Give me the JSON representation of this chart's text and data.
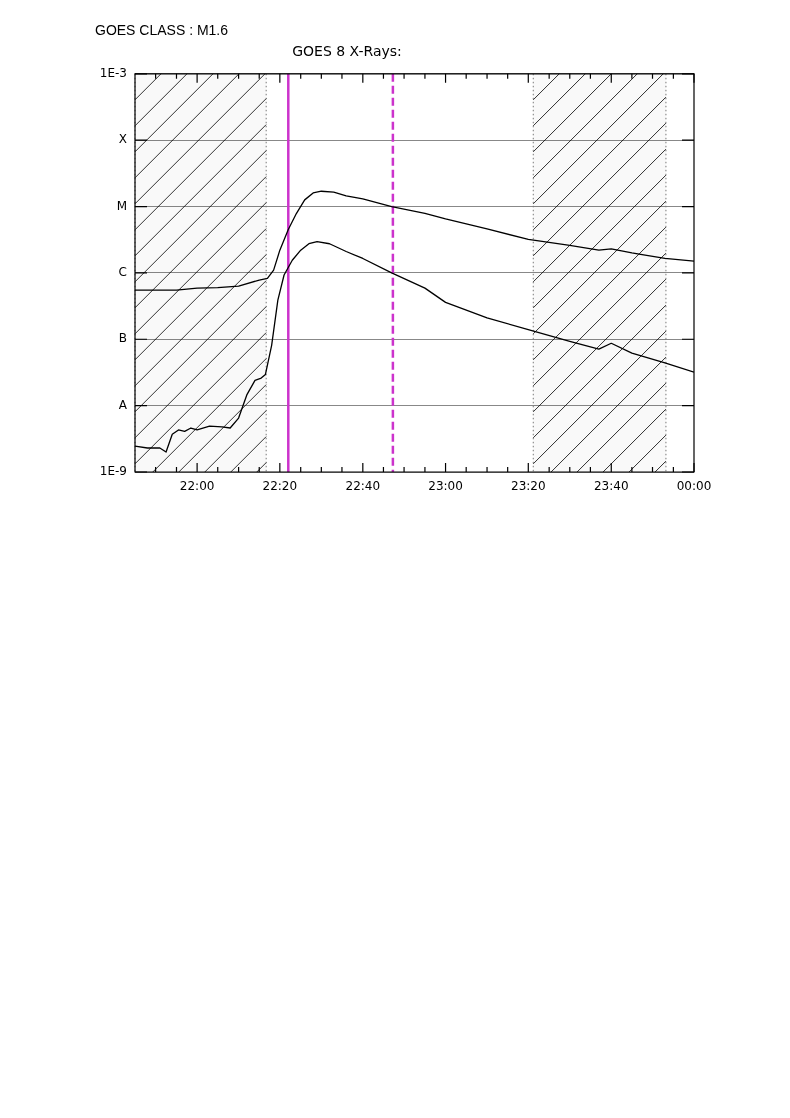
{
  "chart_data": {
    "type": "line",
    "title": "GOES 8 X-Rays:",
    "annotations": [
      "GOES CLASS : M1.6"
    ],
    "log": "y",
    "grid": "y",
    "xlim": [
      21.75,
      24
    ],
    "xticks": [
      {
        "value": 21.833,
        "label": null
      },
      {
        "value": 21.917,
        "label": null
      },
      {
        "value": 22,
        "label": "22:00"
      },
      {
        "value": 22.083,
        "label": null
      },
      {
        "value": 22.167,
        "label": null
      },
      {
        "value": 22.25,
        "label": null
      },
      {
        "value": 22.333,
        "label": "22:20"
      },
      {
        "value": 22.417,
        "label": null
      },
      {
        "value": 22.5,
        "label": null
      },
      {
        "value": 22.583,
        "label": null
      },
      {
        "value": 22.667,
        "label": "22:40"
      },
      {
        "value": 22.75,
        "label": null
      },
      {
        "value": 22.833,
        "label": null
      },
      {
        "value": 22.917,
        "label": null
      },
      {
        "value": 23,
        "label": "23:00"
      },
      {
        "value": 23.083,
        "label": null
      },
      {
        "value": 23.167,
        "label": null
      },
      {
        "value": 23.25,
        "label": null
      },
      {
        "value": 23.333,
        "label": "23:20"
      },
      {
        "value": 23.417,
        "label": null
      },
      {
        "value": 23.5,
        "label": null
      },
      {
        "value": 23.583,
        "label": null
      },
      {
        "value": 23.667,
        "label": "23:40"
      },
      {
        "value": 23.75,
        "label": null
      },
      {
        "value": 23.833,
        "label": null
      },
      {
        "value": 23.917,
        "label": null
      },
      {
        "value": 24,
        "label": "00:00"
      }
    ],
    "ylim": [
      1e-09,
      0.001
    ],
    "yticks": [
      {
        "value": 1e-09,
        "label": "1E-9"
      },
      {
        "value": 1e-08,
        "label": "A"
      },
      {
        "value": 1e-07,
        "label": "B"
      },
      {
        "value": 1e-06,
        "label": "C"
      },
      {
        "value": 1e-05,
        "label": "M"
      },
      {
        "value": 0.0001,
        "label": "X"
      },
      {
        "value": 0.001,
        "label": "1E-3"
      }
    ],
    "bands": [
      {
        "axis": "x",
        "from": 21.75,
        "to": 22.278,
        "color": "#000000"
      },
      {
        "axis": "x",
        "from": 23.353,
        "to": 23.887,
        "color": "#000000"
      }
    ],
    "ref_lines": [
      {
        "axis": "x",
        "value": 22.367,
        "color": "#cc33cc",
        "line_style": "solid"
      },
      {
        "axis": "x",
        "value": 22.788,
        "color": "#cc33cc",
        "line_style": "dashed"
      }
    ],
    "series": [
      {
        "color": "#000000",
        "x": [
          21.75,
          21.917,
          22,
          22.083,
          22.167,
          22.25,
          22.283,
          22.308,
          22.333,
          22.367,
          22.4,
          22.433,
          22.467,
          22.5,
          22.55,
          22.6,
          22.667,
          22.783,
          22.917,
          23,
          23.167,
          23.333,
          23.5,
          23.617,
          23.667,
          23.75,
          23.883,
          24
        ],
        "values": [
          5.5e-07,
          5.5e-07,
          5.9e-07,
          6e-07,
          6.3e-07,
          7.8e-07,
          8.3e-07,
          1.1e-06,
          2.2e-06,
          4.5e-06,
          7.9e-06,
          1.26e-05,
          1.6e-05,
          1.7e-05,
          1.65e-05,
          1.45e-05,
          1.3e-05,
          1e-05,
          7.9e-06,
          6.5e-06,
          4.6e-06,
          3.2e-06,
          2.6e-06,
          2.2e-06,
          2.3e-06,
          2e-06,
          1.65e-06,
          1.5e-06
        ]
      },
      {
        "color": "#000000",
        "x": [
          21.75,
          21.8,
          21.85,
          21.875,
          21.9,
          21.925,
          21.95,
          21.975,
          22,
          22.05,
          22.1,
          22.133,
          22.167,
          22.2,
          22.233,
          22.258,
          22.275,
          22.3,
          22.325,
          22.35,
          22.383,
          22.417,
          22.45,
          22.483,
          22.533,
          22.6,
          22.667,
          22.783,
          22.917,
          23,
          23.167,
          23.333,
          23.5,
          23.617,
          23.667,
          23.75,
          23.883,
          24
        ],
        "values": [
          2.45e-09,
          2.3e-09,
          2.3e-09,
          2e-09,
          3.7e-09,
          4.3e-09,
          4.1e-09,
          4.6e-09,
          4.3e-09,
          4.9e-09,
          4.8e-09,
          4.6e-09,
          6.5e-09,
          1.45e-08,
          2.4e-08,
          2.6e-08,
          2.95e-08,
          8.1e-08,
          3.9e-07,
          9.3e-07,
          1.55e-06,
          2.2e-06,
          2.75e-06,
          2.95e-06,
          2.75e-06,
          2.1e-06,
          1.65e-06,
          1e-06,
          5.9e-07,
          3.6e-07,
          2.1e-07,
          1.4e-07,
          9.3e-08,
          7.1e-08,
          8.7e-08,
          6.2e-08,
          4.4e-08,
          3.2e-08
        ]
      }
    ]
  }
}
